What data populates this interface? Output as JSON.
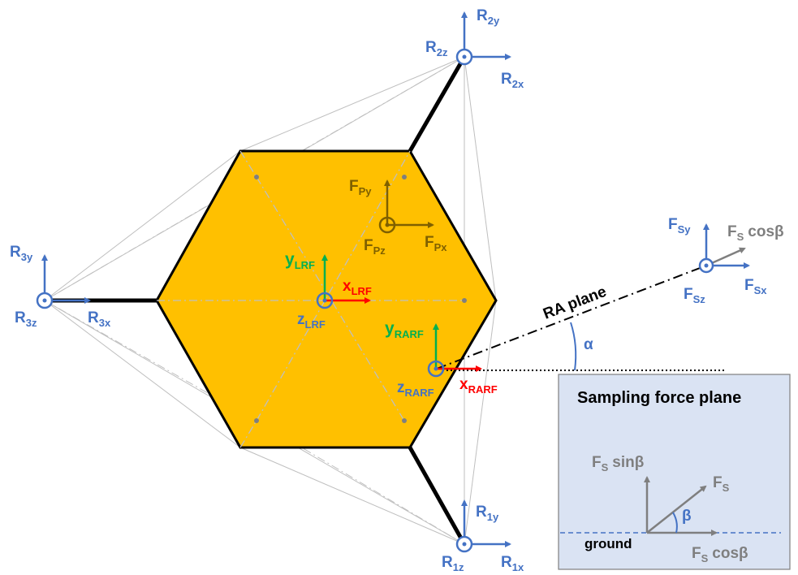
{
  "colors": {
    "hexagon_fill": "#FFC000",
    "hexagon_stroke": "#000000",
    "reaction_blue": "#4472C4",
    "payload_olive": "#7F6000",
    "sample_gray": "#7F7F7F",
    "lrf_green": "#00B050",
    "lrf_red": "#FF0000",
    "panel_fill": "#DAE3F3",
    "panel_stroke": "#7F7F7F",
    "construction_lines": "#BFBFBF"
  },
  "labels": {
    "r2": {
      "y": "2y",
      "z": "2z",
      "x": "2x"
    },
    "r3": {
      "y": "3y",
      "z": "3z",
      "x": "3x"
    },
    "r1": {
      "y": "1y",
      "z": "1z",
      "x": "1x"
    },
    "fp": {
      "y": "Py",
      "z": "Pz",
      "x": "Px"
    },
    "fs": {
      "y": "Sy",
      "z": "Sz",
      "x": "Sx",
      "cos": "cosβ",
      "sub": "S"
    },
    "lrf": {
      "y": "LRF",
      "x": "LRF",
      "z": "LRF"
    },
    "rarf": {
      "y": "RARF",
      "x": "RARF",
      "z": "RARF"
    },
    "ra_plane": "RA plane",
    "alpha": "α",
    "beta": "β",
    "panel_title": "Sampling force plane",
    "ground": "ground",
    "fs_sin": "sinβ",
    "fs_cos": "cosβ",
    "F": "F",
    "R": "R",
    "x": "x",
    "y": "y",
    "z": "z"
  }
}
